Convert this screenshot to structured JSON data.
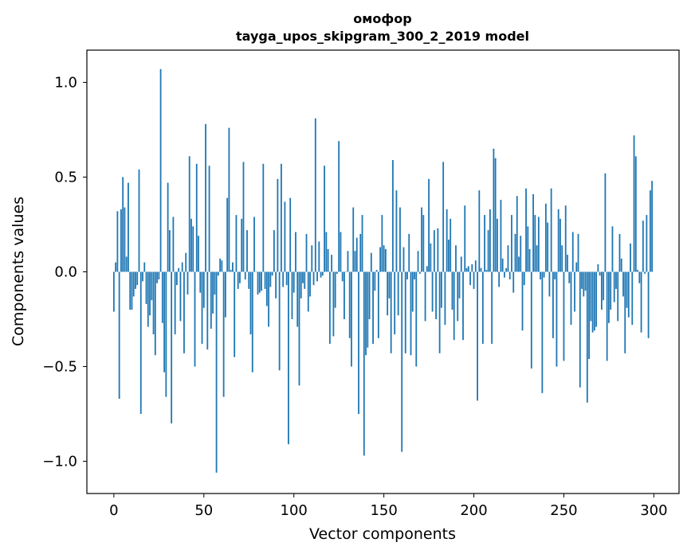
{
  "chart_data": {
    "type": "bar",
    "title": "омофор",
    "subtitle": "tayga_upos_skipgram_300_2_2019 model",
    "xlabel": "Vector components",
    "ylabel": "Components values",
    "xlim": [
      -15,
      314
    ],
    "ylim": [
      -1.17,
      1.17
    ],
    "xticks": [
      0,
      50,
      100,
      150,
      200,
      250,
      300
    ],
    "xtick_labels": [
      "0",
      "50",
      "100",
      "150",
      "200",
      "250",
      "300"
    ],
    "yticks": [
      -1.0,
      -0.5,
      0.0,
      0.5,
      1.0
    ],
    "ytick_labels": [
      "−1.0",
      "−0.5",
      "0.0",
      "0.5",
      "1.0"
    ],
    "bar_color": "#1f77b4",
    "grid": false,
    "series": [
      {
        "name": "омофор",
        "x_start": 0,
        "values": [
          -0.21,
          0.05,
          0.32,
          -0.67,
          0.33,
          0.5,
          0.34,
          0.08,
          0.47,
          -0.2,
          -0.2,
          -0.13,
          -0.09,
          -0.07,
          0.54,
          -0.75,
          -0.05,
          0.05,
          -0.17,
          -0.29,
          -0.23,
          -0.15,
          -0.33,
          -0.44,
          -0.06,
          -0.04,
          1.07,
          -0.27,
          -0.53,
          -0.66,
          0.47,
          0.22,
          -0.8,
          0.29,
          -0.33,
          -0.07,
          0.02,
          -0.26,
          0.05,
          -0.43,
          0.1,
          -0.12,
          0.61,
          0.28,
          0.24,
          -0.5,
          0.57,
          0.19,
          -0.11,
          -0.38,
          -0.19,
          0.78,
          -0.41,
          0.56,
          -0.3,
          -0.22,
          -0.12,
          -1.06,
          -0.02,
          0.07,
          0.06,
          -0.66,
          -0.24,
          0.39,
          0.76,
          0.01,
          0.05,
          -0.45,
          0.3,
          -0.09,
          -0.06,
          0.28,
          0.58,
          -0.04,
          0.22,
          -0.09,
          -0.33,
          -0.53,
          0.29,
          0.0,
          -0.12,
          -0.11,
          -0.1,
          0.57,
          -0.09,
          -0.18,
          -0.29,
          -0.08,
          -0.02,
          0.22,
          -0.14,
          0.49,
          -0.52,
          0.57,
          -0.08,
          0.37,
          -0.07,
          -0.91,
          0.39,
          -0.25,
          -0.11,
          0.21,
          -0.29,
          -0.6,
          -0.14,
          -0.06,
          -0.09,
          0.2,
          -0.21,
          -0.13,
          0.14,
          -0.07,
          0.81,
          -0.05,
          0.16,
          -0.03,
          -0.02,
          0.56,
          0.21,
          0.12,
          -0.38,
          0.09,
          -0.34,
          -0.19,
          -0.01,
          0.69,
          0.21,
          -0.05,
          -0.25,
          0.0,
          0.11,
          -0.35,
          -0.5,
          0.34,
          0.11,
          0.18,
          -0.75,
          0.2,
          0.3,
          -0.97,
          -0.44,
          -0.4,
          -0.25,
          0.1,
          -0.38,
          -0.1,
          0.01,
          -0.35,
          0.13,
          0.3,
          0.14,
          0.12,
          -0.23,
          -0.14,
          -0.43,
          0.59,
          -0.33,
          0.43,
          -0.23,
          0.34,
          -0.95,
          0.13,
          -0.43,
          -0.04,
          0.2,
          -0.44,
          -0.21,
          -0.04,
          -0.5,
          0.11,
          -0.01,
          0.34,
          0.3,
          -0.26,
          0.03,
          0.49,
          0.15,
          -0.21,
          0.22,
          -0.25,
          0.23,
          -0.43,
          -0.19,
          0.58,
          -0.28,
          0.33,
          0.17,
          0.28,
          -0.2,
          -0.36,
          0.14,
          -0.26,
          -0.14,
          0.08,
          -0.36,
          0.35,
          0.02,
          0.03,
          -0.07,
          0.04,
          -0.09,
          0.06,
          -0.68,
          0.43,
          0.02,
          -0.38,
          0.3,
          0.01,
          0.22,
          0.33,
          -0.38,
          0.65,
          0.6,
          0.28,
          -0.08,
          0.38,
          0.07,
          -0.03,
          0.02,
          0.14,
          -0.04,
          0.3,
          -0.11,
          0.2,
          0.4,
          0.08,
          0.19,
          -0.31,
          -0.07,
          0.44,
          0.24,
          0.12,
          -0.51,
          0.41,
          0.3,
          0.14,
          0.29,
          -0.04,
          -0.64,
          -0.03,
          0.36,
          0.26,
          -0.13,
          0.44,
          -0.35,
          -0.04,
          -0.5,
          0.33,
          0.28,
          0.14,
          -0.47,
          0.35,
          0.09,
          -0.06,
          -0.28,
          0.21,
          -0.21,
          0.05,
          0.2,
          -0.61,
          -0.09,
          -0.13,
          -0.1,
          -0.69,
          -0.46,
          -0.26,
          -0.32,
          -0.31,
          -0.29,
          0.04,
          -0.02,
          -0.2,
          -0.15,
          0.52,
          -0.47,
          -0.27,
          -0.2,
          0.24,
          -0.16,
          -0.09,
          -0.26,
          0.2,
          0.07,
          -0.13,
          -0.43,
          -0.19,
          -0.24,
          0.15,
          -0.28,
          0.72,
          0.61,
          0.01,
          -0.06,
          -0.32,
          0.27,
          -0.01,
          0.3,
          -0.35,
          0.43,
          0.48
        ]
      }
    ]
  }
}
